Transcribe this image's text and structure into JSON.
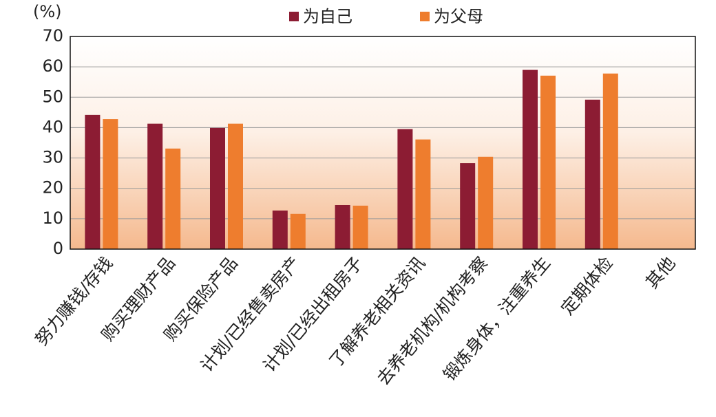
{
  "chart_data": {
    "type": "bar",
    "y_label": "(%)",
    "categories": [
      "努力赚钱/存钱",
      "购买理财产品",
      "购买保险产品",
      "计划/已经售卖房产",
      "计划/已经出租房子",
      "了解养老相关资讯",
      "去养老机构/机构考察",
      "锻炼身体，注重养生",
      "定期体检",
      "其他"
    ],
    "series": [
      {
        "name": "为自己",
        "color": "#8c1c33",
        "values": [
          44.2,
          41.3,
          39.9,
          12.7,
          14.5,
          39.5,
          28.3,
          59.0,
          49.2,
          0
        ]
      },
      {
        "name": "为父母",
        "color": "#ee7d2e",
        "values": [
          42.8,
          33.1,
          41.3,
          11.6,
          14.3,
          36.1,
          30.4,
          57.1,
          57.8,
          0
        ]
      }
    ],
    "ylim": [
      0,
      70
    ],
    "yticks": [
      0,
      10,
      20,
      30,
      40,
      50,
      60,
      70
    ],
    "grid": true
  }
}
